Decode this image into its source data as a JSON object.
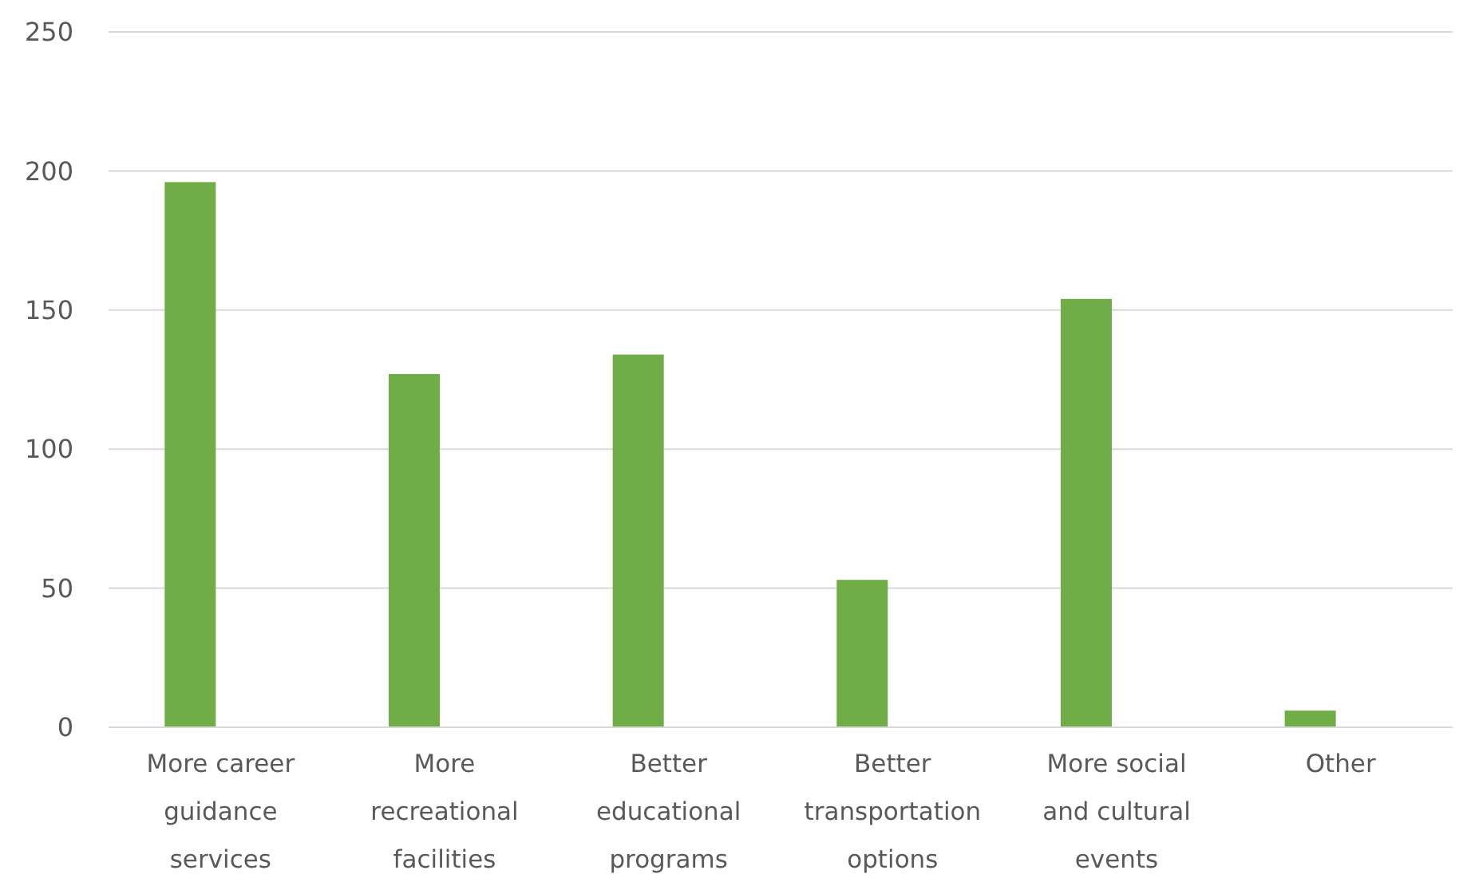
{
  "chart_data": {
    "type": "bar",
    "categories": [
      "More career guidance services",
      "More recreational facilities",
      "Better educational programs",
      "Better transportation options",
      "More social and cultural events",
      "Other"
    ],
    "values": [
      196,
      127,
      134,
      53,
      154,
      6
    ],
    "color": "#70ad47",
    "ylim": [
      0,
      250
    ],
    "yticks": [
      0,
      50,
      100,
      150,
      200,
      250
    ],
    "grid": "y"
  }
}
